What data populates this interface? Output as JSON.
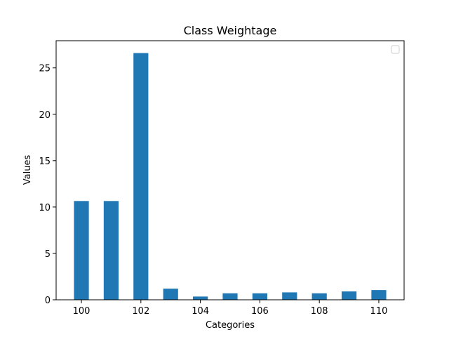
{
  "chart_data": {
    "type": "bar",
    "title": "Class Weightage",
    "xlabel": "Categories",
    "ylabel": "Values",
    "x": [
      100,
      101,
      102,
      103,
      104,
      105,
      106,
      107,
      108,
      109,
      110
    ],
    "values": [
      10.65,
      10.65,
      26.6,
      1.2,
      0.35,
      0.7,
      0.7,
      0.8,
      0.7,
      0.9,
      1.05
    ],
    "xticks": [
      "100",
      "102",
      "104",
      "106",
      "108",
      "110"
    ],
    "yticks": [
      "0",
      "5",
      "10",
      "15",
      "20",
      "25"
    ],
    "xlim": [
      99.15,
      110.85
    ],
    "ylim": [
      0,
      27.93
    ],
    "bar_color": "#1f77b4",
    "legend": "top-right",
    "grid": false
  }
}
